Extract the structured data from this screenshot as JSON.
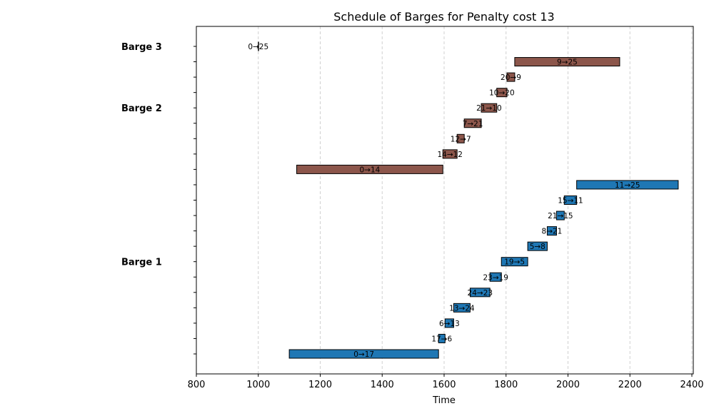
{
  "chart_data": {
    "type": "bar",
    "orientation": "horizontal-gantt",
    "title": "Schedule of Barges for Penalty cost 13",
    "xlabel": "Time",
    "ylabel": "",
    "xlim": [
      800,
      2410
    ],
    "xticks": [
      800,
      1000,
      1200,
      1400,
      1600,
      1800,
      2000,
      2200,
      2400
    ],
    "grid": "vertical dashed",
    "groups": [
      {
        "name": "Barge 1",
        "color": "#1f77b4",
        "label_row": 14
      },
      {
        "name": "Barge 2",
        "color": "#8c564b",
        "label_row": 4
      },
      {
        "name": "Barge 3",
        "color": "#7f7f7f",
        "label_row": 0
      }
    ],
    "tasks": [
      {
        "row": 0,
        "group": "Barge 3",
        "label": "0→25",
        "start": 1000,
        "end": 1000
      },
      {
        "row": 1,
        "group": "Barge 2",
        "label": "9→25",
        "start": 1828,
        "end": 2167
      },
      {
        "row": 2,
        "group": "Barge 2",
        "label": "20→9",
        "start": 1803,
        "end": 1828
      },
      {
        "row": 3,
        "group": "Barge 2",
        "label": "10→20",
        "start": 1770,
        "end": 1803
      },
      {
        "row": 4,
        "group": "Barge 2",
        "label": "21→10",
        "start": 1720,
        "end": 1770
      },
      {
        "row": 5,
        "group": "Barge 2",
        "label": "7→21",
        "start": 1665,
        "end": 1720
      },
      {
        "row": 6,
        "group": "Barge 2",
        "label": "12→7",
        "start": 1642,
        "end": 1665
      },
      {
        "row": 7,
        "group": "Barge 2",
        "label": "14→12",
        "start": 1596,
        "end": 1642
      },
      {
        "row": 8,
        "group": "Barge 2",
        "label": "0→14",
        "start": 1124,
        "end": 1596
      },
      {
        "row": 9,
        "group": "Barge 1",
        "label": "11→25",
        "start": 2028,
        "end": 2356
      },
      {
        "row": 10,
        "group": "Barge 1",
        "label": "15→11",
        "start": 1988,
        "end": 2028
      },
      {
        "row": 11,
        "group": "Barge 1",
        "label": "21→15",
        "start": 1963,
        "end": 1988
      },
      {
        "row": 12,
        "group": "Barge 1",
        "label": "8→21",
        "start": 1933,
        "end": 1963
      },
      {
        "row": 13,
        "group": "Barge 1",
        "label": "5→8",
        "start": 1870,
        "end": 1933
      },
      {
        "row": 14,
        "group": "Barge 1",
        "label": "19→5",
        "start": 1785,
        "end": 1870
      },
      {
        "row": 15,
        "group": "Barge 1",
        "label": "23→19",
        "start": 1748,
        "end": 1785
      },
      {
        "row": 16,
        "group": "Barge 1",
        "label": "24→23",
        "start": 1684,
        "end": 1748
      },
      {
        "row": 17,
        "group": "Barge 1",
        "label": "13→24",
        "start": 1631,
        "end": 1684
      },
      {
        "row": 18,
        "group": "Barge 1",
        "label": "6→13",
        "start": 1603,
        "end": 1631
      },
      {
        "row": 19,
        "group": "Barge 1",
        "label": "17→6",
        "start": 1582,
        "end": 1603
      },
      {
        "row": 20,
        "group": "Barge 1",
        "label": "0→17",
        "start": 1100,
        "end": 1582
      }
    ]
  }
}
